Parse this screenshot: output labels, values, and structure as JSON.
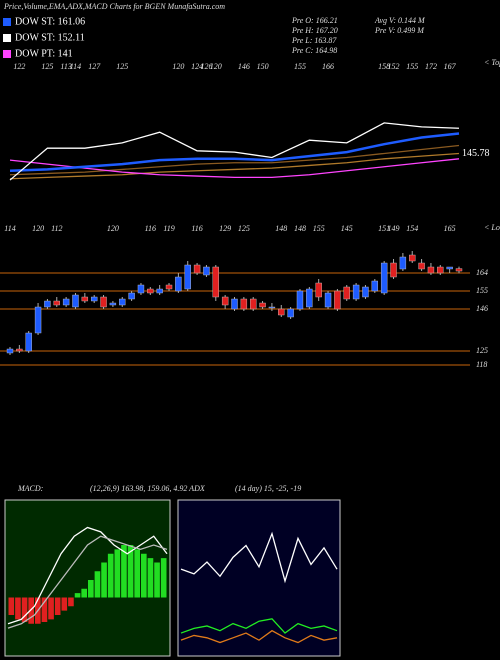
{
  "header": {
    "title": "Price,Volume,EMA,ADX,MACD Charts for BGEN MunafaSutra.com",
    "legend": [
      {
        "label": "DOW ST: 161.06",
        "color": "#1e5cff"
      },
      {
        "label": "DOW ST: 152.11",
        "color": "#ffffff"
      },
      {
        "label": "DOW PT: 141",
        "color": "#ff44ff"
      }
    ],
    "stats": [
      "Pre  O: 166.21",
      "Pre  H: 167.20",
      "Pre  L: 163.87",
      "Pre  C: 164.98",
      "Avg V: 0.144  M",
      "Pre  V: 0.499 M"
    ]
  },
  "chart_data": [
    {
      "type": "line",
      "x": [
        0,
        4,
        8,
        12,
        16,
        20,
        24,
        28,
        32,
        36,
        40,
        44,
        48
      ],
      "xlim": [
        0,
        48
      ],
      "ylim": [
        111,
        190
      ],
      "series": [
        {
          "color": "#b07a2a",
          "values": [
            127,
            128,
            129,
            130,
            132,
            133,
            134,
            135,
            137,
            139,
            142,
            144,
            146
          ]
        },
        {
          "color": "#8a5a20",
          "values": [
            130,
            131,
            132,
            134,
            136,
            138,
            139,
            139,
            141,
            143,
            146,
            149,
            152
          ]
        },
        {
          "color": "#ff44ff",
          "values": [
            141,
            138,
            135,
            132,
            130,
            129,
            128,
            128,
            130,
            133,
            136,
            139,
            142
          ]
        },
        {
          "color": "#1e5cff",
          "values": [
            133,
            134,
            136,
            138,
            141,
            142,
            142,
            141,
            144,
            147,
            153,
            158,
            161
          ]
        },
        {
          "color": "#ffffff",
          "values": [
            126,
            150,
            150,
            154,
            162,
            148,
            147,
            143,
            156,
            154,
            169,
            166,
            164.98
          ]
        }
      ],
      "yticks": [
        145.78
      ],
      "tops": [
        {
          "x": 1,
          "value": 122
        },
        {
          "x": 4,
          "value": 125
        },
        {
          "x": 6,
          "value": 113
        },
        {
          "x": 7,
          "value": 114
        },
        {
          "x": 9,
          "value": 127
        },
        {
          "x": 12,
          "value": 125
        },
        {
          "x": 18,
          "value": 120
        },
        {
          "x": 20,
          "value": 124
        },
        {
          "x": 21,
          "value": 126
        },
        {
          "x": 22,
          "value": 120
        },
        {
          "x": 25,
          "value": 146
        },
        {
          "x": 27,
          "value": 150
        },
        {
          "x": 31,
          "value": 155
        },
        {
          "x": 34,
          "value": 166
        },
        {
          "x": 40,
          "value": 158
        },
        {
          "x": 41,
          "value": 152
        },
        {
          "x": 43,
          "value": 155
        },
        {
          "x": 45,
          "value": 172
        },
        {
          "x": 47,
          "value": 167
        }
      ],
      "tops_label": "< Tops"
    },
    {
      "type": "candlestick",
      "xlim": [
        0,
        48
      ],
      "ylim": [
        60,
        188
      ],
      "up_color": "#1e5cff",
      "down_color": "#e02020",
      "level_color": "#c8640a",
      "open": [
        124,
        126,
        125,
        134,
        147,
        150,
        148,
        147,
        152,
        150,
        152,
        148,
        148,
        151,
        154,
        156,
        154,
        158,
        155,
        156,
        168,
        163,
        167,
        152,
        146,
        151,
        151,
        149,
        147,
        146,
        142,
        146,
        147,
        159,
        147,
        155,
        157,
        151,
        152,
        155,
        154,
        169,
        166,
        173,
        169,
        167,
        167,
        166,
        166.21
      ],
      "high": [
        127,
        128,
        135,
        149,
        151,
        152,
        152,
        154,
        154,
        153,
        153,
        150,
        152,
        155,
        159,
        157,
        158,
        159,
        164,
        170,
        169,
        168,
        168,
        153,
        152,
        152,
        152,
        150,
        149,
        148,
        147,
        156,
        157,
        161,
        155,
        156,
        158,
        159,
        158,
        161,
        170,
        171,
        174,
        175,
        171,
        169,
        168,
        167,
        167.2
      ],
      "low": [
        123,
        124,
        124,
        133,
        146,
        147,
        147,
        146,
        149,
        149,
        146,
        147,
        147,
        150,
        153,
        153,
        153,
        155,
        154,
        155,
        163,
        162,
        150,
        146,
        145,
        145,
        145,
        146,
        145,
        142,
        141,
        145,
        146,
        150,
        146,
        145,
        150,
        150,
        151,
        154,
        153,
        161,
        165,
        169,
        165,
        163,
        163,
        164,
        163.87
      ],
      "close": [
        126,
        125,
        134,
        147,
        150,
        148,
        151,
        153,
        150,
        152,
        147,
        149,
        151,
        154,
        158,
        154,
        156,
        156,
        162,
        168,
        164,
        167,
        152,
        148,
        151,
        146,
        146,
        147,
        147,
        143,
        146,
        155,
        156,
        152,
        154,
        146,
        151,
        158,
        157,
        160,
        169,
        162,
        172,
        170,
        166,
        164,
        164,
        167,
        164.98
      ],
      "yticks": [
        164,
        155,
        146,
        125,
        118
      ],
      "lows": [
        {
          "x": 0,
          "value": 114
        },
        {
          "x": 3,
          "value": 120
        },
        {
          "x": 5,
          "value": 112
        },
        {
          "x": 11,
          "value": 120
        },
        {
          "x": 15,
          "value": 116
        },
        {
          "x": 17,
          "value": 119
        },
        {
          "x": 20,
          "value": 116
        },
        {
          "x": 23,
          "value": 129
        },
        {
          "x": 25,
          "value": 125
        },
        {
          "x": 29,
          "value": 148
        },
        {
          "x": 31,
          "value": 148
        },
        {
          "x": 33,
          "value": 155
        },
        {
          "x": 36,
          "value": 145
        },
        {
          "x": 40,
          "value": 151
        },
        {
          "x": 41,
          "value": 149
        },
        {
          "x": 43,
          "value": 154
        },
        {
          "x": 47,
          "value": 165
        }
      ],
      "lows_label": "< Lows"
    },
    {
      "type": "macd",
      "title": "MACD:",
      "subtitle": "(12,26,9) 163.98, 159.06, 4.92 ADX",
      "x": [
        0,
        1,
        2,
        3,
        4,
        5,
        6,
        7,
        8,
        9,
        10,
        11,
        12
      ],
      "xlim": [
        0,
        12
      ],
      "ylim": [
        -6,
        10
      ],
      "histogram": [
        -2,
        -2.5,
        -2.8,
        -3,
        -3,
        -2.8,
        -2.5,
        -2,
        -1.5,
        -1,
        0.5,
        1,
        2,
        3,
        4,
        5,
        5.5,
        6,
        6,
        5.5,
        5,
        4.5,
        4,
        4.5
      ],
      "up_color": "#22dd22",
      "down_color": "#e02020",
      "series": [
        {
          "color": "#ffffff",
          "values": [
            -3,
            -2.5,
            -1,
            2,
            5,
            7,
            8,
            7.5,
            6,
            5,
            6,
            7,
            5
          ]
        },
        {
          "color": "#bbbbbb",
          "values": [
            -3.5,
            -3,
            -2,
            0,
            2,
            4,
            6,
            7,
            6.5,
            6,
            5.5,
            6,
            5.5
          ]
        }
      ]
    },
    {
      "type": "adx",
      "title": "(14  day) 15, -25, -19",
      "x": [
        0,
        1,
        2,
        3,
        4,
        5,
        6,
        7,
        8,
        9,
        10,
        11,
        12
      ],
      "xlim": [
        0,
        12
      ],
      "ylim": [
        0,
        60
      ],
      "series": [
        {
          "color": "#ffffff",
          "values": [
            35,
            33,
            38,
            32,
            40,
            45,
            36,
            50,
            30,
            48,
            37,
            44,
            35
          ]
        },
        {
          "color": "#22ee22",
          "values": [
            8,
            10,
            11,
            9,
            12,
            10,
            13,
            14,
            8,
            12,
            10,
            11,
            9
          ]
        },
        {
          "color": "#e07a1a",
          "values": [
            5,
            7,
            6,
            4,
            6,
            8,
            5,
            9,
            6,
            4,
            7,
            5,
            6
          ]
        }
      ]
    }
  ]
}
